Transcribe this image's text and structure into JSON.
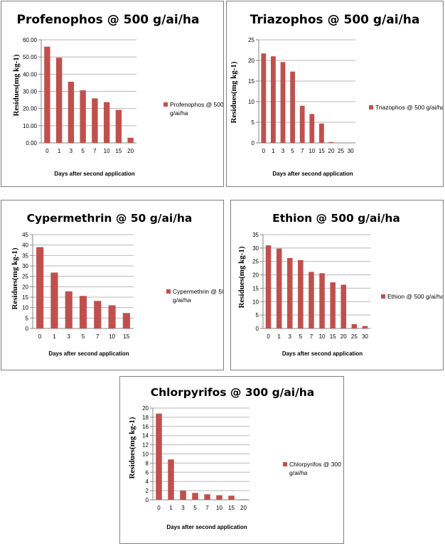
{
  "chart_data": [
    {
      "type": "bar",
      "title": "Profenophos @ 500 g/ai/ha",
      "xlabel": "Days after second application",
      "ylabel": "Residues(mg kg-1)",
      "categories": [
        "0",
        "1",
        "3",
        "5",
        "7",
        "10",
        "15",
        "20"
      ],
      "series": [
        {
          "name": "Profenophos @ 500 g/ai/ha",
          "values": [
            56.0,
            49.6,
            35.6,
            30.6,
            25.9,
            23.7,
            19.2,
            3.0
          ]
        }
      ],
      "ylim": [
        0,
        60
      ],
      "yticks": [
        "0.00",
        "10.00",
        "20.00",
        "30.00",
        "40.00",
        "50.00",
        "60.00"
      ],
      "legend": [
        "Profenophos @ 500",
        "g/ai/ha"
      ],
      "legend_position": "right",
      "grid": true,
      "color": "#c0504d"
    },
    {
      "type": "bar",
      "title": "Triazophos @ 500 g/ai/ha",
      "xlabel": "Days after second application",
      "ylabel": "Residues(mg kg-1)",
      "categories": [
        "0",
        "1",
        "3",
        "5",
        "7",
        "10",
        "15",
        "20",
        "25",
        "30"
      ],
      "series": [
        {
          "name": "Triazophos @ 500 g/ai/ha",
          "values": [
            21.7,
            21.0,
            19.6,
            17.3,
            9.0,
            7.0,
            4.7,
            0.2,
            0,
            0
          ]
        }
      ],
      "ylim": [
        0,
        25
      ],
      "yticks": [
        "0",
        "5",
        "10",
        "15",
        "20",
        "25"
      ],
      "legend": [
        "Triazophos @ 500 g/ai/ha"
      ],
      "legend_position": "right",
      "grid": true,
      "color": "#c0504d"
    },
    {
      "type": "bar",
      "title": "Cypermethrin @ 50 g/ai/ha",
      "xlabel": "Days after second application",
      "ylabel": "Residues(mg kg-1)",
      "categories": [
        "0",
        "1",
        "3",
        "5",
        "7",
        "10",
        "15"
      ],
      "series": [
        {
          "name": "Cypermethrin @ 50 g/ai/ha",
          "values": [
            39.0,
            26.8,
            17.8,
            15.6,
            13.2,
            11.1,
            7.4
          ]
        }
      ],
      "ylim": [
        0,
        45
      ],
      "yticks": [
        "0",
        "5",
        "10",
        "15",
        "20",
        "25",
        "30",
        "35",
        "40",
        "45"
      ],
      "legend": [
        "Cypermethrin @ 50",
        "g/ai/ha"
      ],
      "legend_position": "right",
      "grid": true,
      "color": "#c0504d"
    },
    {
      "type": "bar",
      "title": "Ethion @ 500 g/ai/ha",
      "xlabel": "Days after second application",
      "ylabel": "Residues(mg kg-1)",
      "categories": [
        "0",
        "1",
        "3",
        "5",
        "7",
        "10",
        "15",
        "20",
        "25",
        "30"
      ],
      "series": [
        {
          "name": "Ethion @ 500 g/ai/ha",
          "values": [
            31.0,
            29.8,
            26.3,
            25.5,
            21.1,
            20.6,
            17.2,
            16.3,
            1.6,
            0.9
          ]
        }
      ],
      "ylim": [
        0,
        35
      ],
      "yticks": [
        "0",
        "5",
        "10",
        "15",
        "20",
        "25",
        "30",
        "35"
      ],
      "legend": [
        "Ethion @ 500 g/ai/ha"
      ],
      "legend_position": "right",
      "grid": true,
      "color": "#c0504d"
    },
    {
      "type": "bar",
      "title": "Chlorpyrifos @ 300 g/ai/ha",
      "xlabel": "Days after second application",
      "ylabel": "Residues(mg kg-1)",
      "categories": [
        "0",
        "1",
        "3",
        "5",
        "7",
        "10",
        "15",
        "20"
      ],
      "series": [
        {
          "name": "Chlorpyrifos @ 300 g/ai/ha",
          "values": [
            18.8,
            8.8,
            2.0,
            1.5,
            1.2,
            1.0,
            0.9,
            0.1
          ]
        }
      ],
      "ylim": [
        0,
        20
      ],
      "yticks": [
        "0",
        "2",
        "4",
        "6",
        "8",
        "10",
        "12",
        "14",
        "16",
        "18",
        "20"
      ],
      "legend": [
        "Chlorpyrifos @ 300",
        "g/ai/ha"
      ],
      "legend_position": "right",
      "grid": true,
      "color": "#c0504d"
    }
  ]
}
